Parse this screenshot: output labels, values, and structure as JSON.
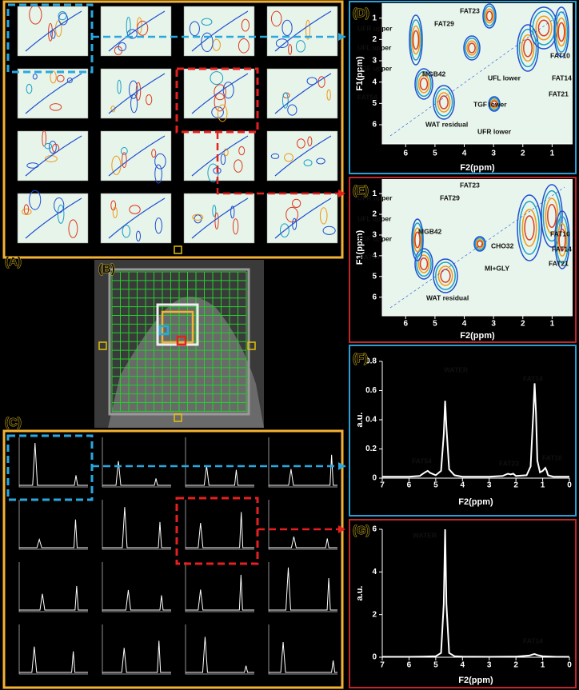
{
  "panel_labels": [
    "(A)",
    "(B)",
    "(C)",
    "(D)",
    "(E)",
    "(F)",
    "(G)"
  ],
  "chart_data": [
    {
      "type": "contour",
      "xlabel": "F2(ppm)",
      "ylabel": "F1(ppm)",
      "xlim": [
        6.8,
        0.3
      ],
      "xticks": [
        6,
        5,
        4,
        3,
        2,
        1
      ],
      "ylim": [
        0.3,
        6.9
      ],
      "yticks": [
        1,
        2,
        3,
        4,
        5,
        6
      ],
      "annotations": [
        "FAT23",
        "FAT29",
        "UFR upper",
        "UFL upper",
        "TGF upper",
        "MGB42",
        "FAT54",
        "UFL lower",
        "TGF lower",
        "WAT residual",
        "UFR lower",
        "FAT10",
        "FAT14",
        "FAT21"
      ]
    },
    {
      "type": "contour",
      "xlabel": "F2(ppm)",
      "ylabel": "F1(ppm)",
      "xlim": [
        6.8,
        0.3
      ],
      "xticks": [
        6,
        5,
        4,
        3,
        2,
        1
      ],
      "ylim": [
        0.3,
        6.9
      ],
      "yticks": [
        1,
        2,
        3,
        4,
        5,
        6
      ],
      "annotations": [
        "UFR upper",
        "FAT23",
        "FAT29",
        "UFL upper",
        "MGB42",
        "TGF upper",
        "CHO32",
        "MI+GLY",
        "FAT54",
        "WAT residual",
        "FAT10",
        "FAT14",
        "FAT21"
      ]
    },
    {
      "type": "line",
      "xlabel": "F2(ppm)",
      "ylabel": "a.u.",
      "color": "#ffffff",
      "xlim": [
        7,
        0
      ],
      "xticks": [
        7,
        6,
        5,
        4,
        3,
        2,
        1,
        0
      ],
      "ylim": [
        0,
        0.8
      ],
      "yticks": [
        0,
        0.2,
        0.4,
        0.6,
        0.8
      ],
      "x": [
        7,
        6.5,
        6,
        5.6,
        5.4,
        5.3,
        5.2,
        5.0,
        4.8,
        4.7,
        4.65,
        4.6,
        4.5,
        4.3,
        4.0,
        3.5,
        3.0,
        2.5,
        2.3,
        2.2,
        2.1,
        2.0,
        1.6,
        1.45,
        1.35,
        1.3,
        1.25,
        1.2,
        1.1,
        1.0,
        0.9,
        0.85,
        0.8,
        0.6,
        0.3,
        0
      ],
      "values": [
        0.01,
        0.01,
        0.01,
        0.015,
        0.04,
        0.05,
        0.035,
        0.02,
        0.05,
        0.3,
        0.53,
        0.35,
        0.06,
        0.02,
        0.01,
        0.01,
        0.01,
        0.015,
        0.03,
        0.025,
        0.03,
        0.015,
        0.02,
        0.08,
        0.45,
        0.65,
        0.45,
        0.12,
        0.04,
        0.05,
        0.07,
        0.05,
        0.02,
        0.01,
        0.01,
        0.01
      ],
      "annotations": [
        "WATER",
        "FAT54",
        "FAT23",
        "FAT14",
        "FAT10"
      ]
    },
    {
      "type": "line",
      "xlabel": "F2(ppm)",
      "ylabel": "a.u.",
      "color": "#ffffff",
      "xlim": [
        7,
        0
      ],
      "xticks": [
        7,
        6,
        5,
        4,
        3,
        2,
        1,
        0
      ],
      "ylim": [
        0,
        6
      ],
      "yticks": [
        0,
        2,
        4,
        6
      ],
      "x": [
        7,
        6,
        5.5,
        5,
        4.8,
        4.7,
        4.65,
        4.6,
        4.5,
        4.3,
        4,
        3,
        2,
        1.5,
        1.35,
        1.3,
        1.2,
        1,
        0.5,
        0
      ],
      "values": [
        0.02,
        0.02,
        0.03,
        0.05,
        0.2,
        2.5,
        6,
        2.5,
        0.2,
        0.05,
        0.03,
        0.02,
        0.03,
        0.08,
        0.14,
        0.15,
        0.1,
        0.05,
        0.02,
        0.02
      ],
      "annotations": [
        "WATER",
        "FAT14"
      ]
    }
  ]
}
